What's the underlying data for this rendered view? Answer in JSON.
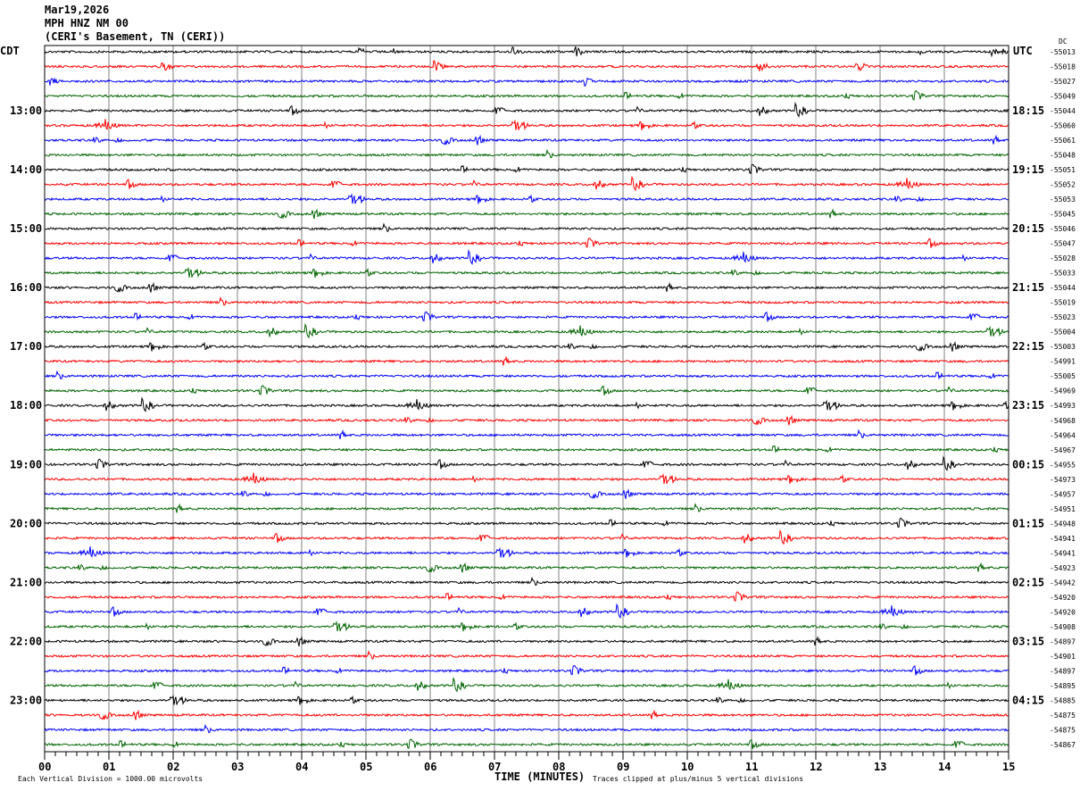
{
  "header": {
    "date": "Mar19,2026",
    "station": "MPH HNZ NM 00",
    "location": "(CERI's Basement, TN (CERI))"
  },
  "chart_data": {
    "type": "line",
    "title": "",
    "left_timezone": "CDT",
    "right_timezone": "UTC",
    "dc_label": "DC",
    "xlabel": "TIME (MINUTES)",
    "xlim": [
      0,
      15
    ],
    "x_ticks": [
      "00",
      "01",
      "02",
      "03",
      "04",
      "05",
      "06",
      "07",
      "08",
      "09",
      "10",
      "11",
      "12",
      "13",
      "14",
      "15"
    ],
    "grid": true,
    "left_hour_labels": [
      "13:00",
      "14:00",
      "15:00",
      "16:00",
      "17:00",
      "18:00",
      "19:00",
      "20:00",
      "21:00",
      "22:00",
      "23:00"
    ],
    "right_hour_labels": [
      "18:15",
      "19:15",
      "20:15",
      "21:15",
      "22:15",
      "23:15",
      "00:15",
      "01:15",
      "02:15",
      "03:15",
      "04:15"
    ],
    "trace_colors": [
      "#000000",
      "#ff0000",
      "#0000ff",
      "#006400"
    ],
    "dc_offsets": [
      "-55013",
      "-55018",
      "-55027",
      "-55049",
      "-55044",
      "-55060",
      "-55061",
      "-55048",
      "-55051",
      "-55052",
      "-55053",
      "-55045",
      "-55046",
      "-55047",
      "-55028",
      "-55033",
      "-55044",
      "-55019",
      "-55023",
      "-55004",
      "-55003",
      "-54991",
      "-55005",
      "-54969",
      "-54993",
      "-54968",
      "-54964",
      "-54967",
      "-54955",
      "-54973",
      "-54957",
      "-54951",
      "-54948",
      "-54941",
      "-54941",
      "-54923",
      "-54942",
      "-54920",
      "-54920",
      "-54908",
      "-54897",
      "-54901",
      "-54897",
      "-54895",
      "-54885",
      "-54875",
      "-54875",
      "-54867"
    ],
    "scale_note": "Each Vertical Division = 1000.00 microvolts",
    "clip_note": "Traces clipped at plus/minus 5 vertical divisions"
  }
}
